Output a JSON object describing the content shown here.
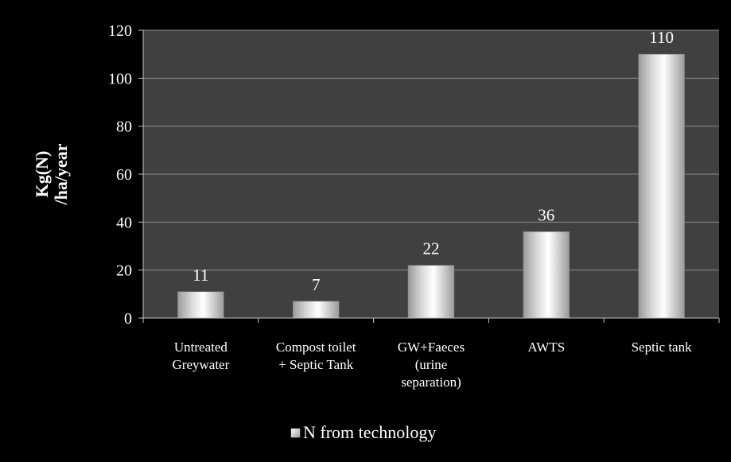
{
  "chart_data": {
    "type": "bar",
    "categories": [
      [
        "Untreated",
        "Greywater"
      ],
      [
        "Compost toilet",
        "+ Septic Tank"
      ],
      [
        "GW+Faeces",
        "(urine",
        "separation)"
      ],
      [
        "AWTS"
      ],
      [
        "Septic tank"
      ]
    ],
    "series": [
      {
        "name": "N from technology",
        "values": [
          11,
          7,
          22,
          36,
          110
        ]
      }
    ],
    "data_labels": [
      "11",
      "7",
      "22",
      "36",
      "110"
    ],
    "ylabel_lines": [
      "Kg(N)",
      "/ha/year"
    ],
    "ylim": [
      0,
      120
    ],
    "yticks": [
      0,
      20,
      40,
      60,
      80,
      100,
      120
    ],
    "grid": true,
    "legend_position": "bottom"
  },
  "colors": {
    "background": "#000000",
    "plot_area": "#404040",
    "gridline": "#8c8c8c",
    "axis": "#bfbfbf",
    "text": "#ffffff",
    "bar_light": "#ffffff",
    "bar_mid": "#d9d9d9",
    "bar_dark": "#9a9a9a"
  }
}
